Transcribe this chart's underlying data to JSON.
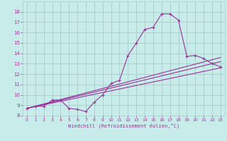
{
  "xlabel": "Windchill (Refroidissement éolien,°C)",
  "bg_color": "#c8ecea",
  "line_color": "#993399",
  "grid_color": "#aacccc",
  "xlim": [
    -0.5,
    23.5
  ],
  "ylim": [
    8,
    19
  ],
  "yticks": [
    8,
    9,
    10,
    11,
    12,
    13,
    14,
    15,
    16,
    17,
    18
  ],
  "xticks": [
    0,
    1,
    2,
    3,
    4,
    5,
    6,
    7,
    8,
    9,
    10,
    11,
    12,
    13,
    14,
    15,
    16,
    17,
    18,
    19,
    20,
    21,
    22,
    23
  ],
  "main_x": [
    0,
    1,
    2,
    3,
    4,
    5,
    6,
    7,
    8,
    9,
    10,
    11,
    12,
    13,
    14,
    15,
    16,
    17,
    18,
    19,
    20,
    21,
    22,
    23
  ],
  "main_y": [
    8.7,
    8.9,
    8.9,
    9.5,
    9.5,
    8.7,
    8.6,
    8.4,
    9.3,
    10.0,
    11.1,
    11.4,
    13.8,
    15.0,
    16.3,
    16.5,
    17.8,
    17.8,
    17.2,
    13.7,
    13.8,
    13.5,
    13.0,
    12.7
  ],
  "line2_x": [
    0,
    23
  ],
  "line2_y": [
    8.7,
    13.2
  ],
  "line3_x": [
    0,
    23
  ],
  "line3_y": [
    8.7,
    12.6
  ],
  "line4_x": [
    0,
    23
  ],
  "line4_y": [
    8.7,
    13.6
  ]
}
